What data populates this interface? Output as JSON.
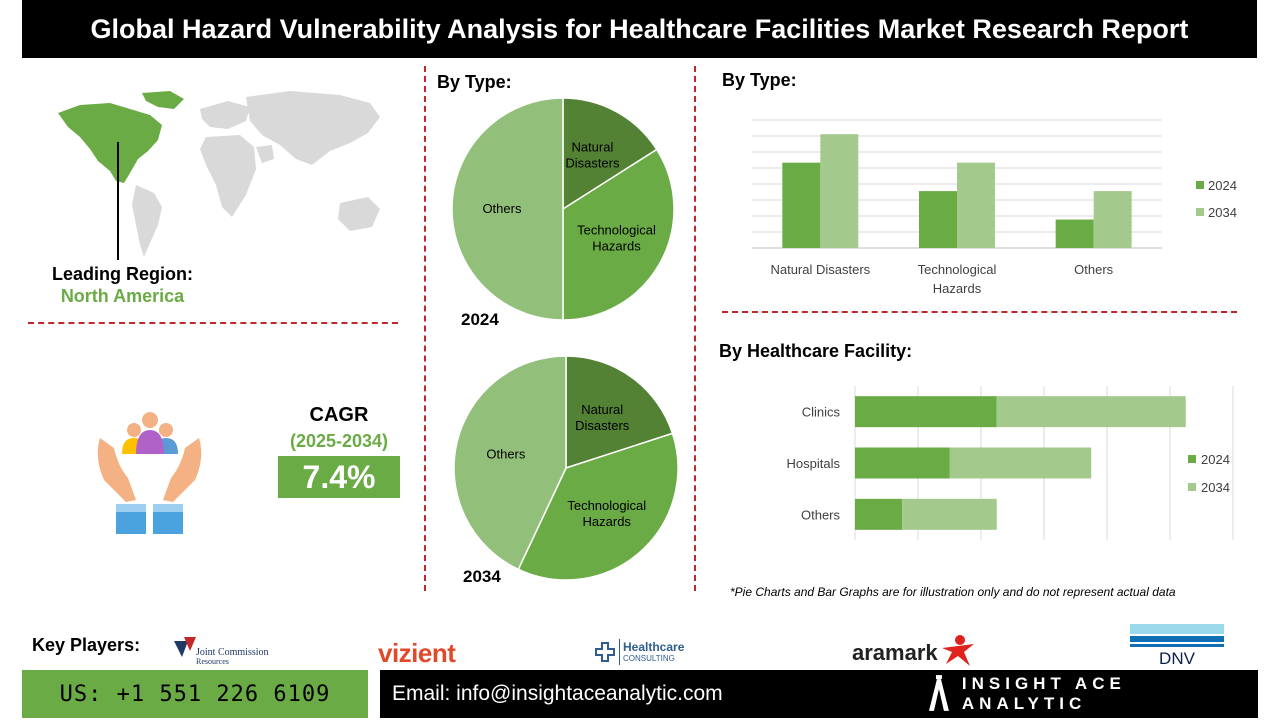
{
  "title": "Global Hazard Vulnerability Analysis for Healthcare Facilities Market Research Report",
  "leading_region": {
    "label": "Leading Region:",
    "value": "North America"
  },
  "cagr": {
    "label": "CAGR",
    "period": "(2025-2034)",
    "value": "7.4%"
  },
  "pie_section": {
    "title": "By Type:",
    "year_top": "2024",
    "year_bottom": "2034"
  },
  "bar_type_section": {
    "title": "By Type:"
  },
  "facility_section": {
    "title": "By Healthcare Facility:"
  },
  "footnote": "*Pie Charts and Bar Graphs are for illustration only and do not represent actual data",
  "key_players": {
    "label": "Key Players:",
    "logos": [
      {
        "name": "joint-commission",
        "line1": "Joint Commission",
        "line2": "Resources"
      },
      {
        "name": "vizient",
        "text": "vizient"
      },
      {
        "name": "healthcare-consulting",
        "line1": "Healthcare",
        "line2": "CONSULTING"
      },
      {
        "name": "aramark",
        "text": "aramark"
      },
      {
        "name": "dnv",
        "text": "DNV"
      }
    ]
  },
  "footer": {
    "phone": "US: +1 551 226 6109",
    "email": "Email: info@insightaceanalytic.com",
    "brand": "INSIGHT ACE ANALYTIC"
  },
  "colors": {
    "dark_green": "#548235",
    "mid_green": "#6aab46",
    "light_green": "#9cc888",
    "accent_red": "#c0282a"
  },
  "icons": [
    "world-map-icon",
    "people-hands-icon"
  ],
  "chart_data": [
    {
      "type": "pie",
      "year": "2024",
      "labels": [
        "Natural Disasters",
        "Technological Hazards",
        "Others"
      ],
      "values": [
        16,
        34,
        50
      ],
      "colors": [
        "#548235",
        "#6aab46",
        "#92c07a"
      ]
    },
    {
      "type": "pie",
      "year": "2034",
      "labels": [
        "Natural Disasters",
        "Technological Hazards",
        "Others"
      ],
      "values": [
        20,
        37,
        43
      ],
      "colors": [
        "#548235",
        "#6aab46",
        "#92c07a"
      ]
    },
    {
      "type": "bar",
      "title": "",
      "categories": [
        "Natural Disasters",
        "Technological Hazards",
        "Others"
      ],
      "category_lines": [
        [
          "Natural Disasters"
        ],
        [
          "Technological",
          "Hazards"
        ],
        [
          "Others"
        ]
      ],
      "series": [
        {
          "name": "2024",
          "values": [
            3,
            2,
            1
          ],
          "color": "#6aab46"
        },
        {
          "name": "2034",
          "values": [
            4,
            3,
            2
          ],
          "color": "#a3c98d"
        }
      ],
      "ylim": [
        0,
        4.5
      ],
      "grid": true,
      "legend": "right"
    },
    {
      "type": "bar",
      "orientation": "horizontal",
      "stacked": true,
      "categories": [
        "Clinics",
        "Hospitals",
        "Others"
      ],
      "series": [
        {
          "name": "2024",
          "values": [
            3,
            2,
            1
          ],
          "color": "#6aab46"
        },
        {
          "name": "2034",
          "values": [
            4,
            3,
            2
          ],
          "color": "#a3c98d"
        }
      ],
      "xlim": [
        0,
        8
      ],
      "grid": true,
      "legend": "right"
    }
  ]
}
